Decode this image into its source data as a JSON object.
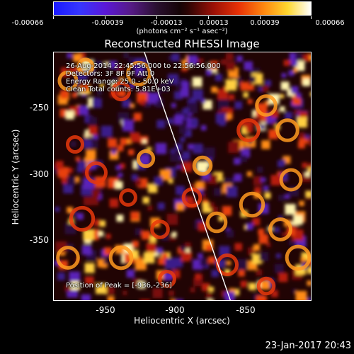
{
  "colorbar": {
    "tick_labels": [
      "-0.00066",
      "-0.00039",
      "-0.00013",
      "0.00013",
      "0.00039",
      "0.00066"
    ],
    "units": "(photons cm⁻² s⁻¹ asec⁻²)",
    "min": -0.00066,
    "max": 0.00066
  },
  "image": {
    "title": "Reconstructed RHESSI Image",
    "info_lines": [
      "26-Aug-2014 22:45:56.000 to 22:56:56.000",
      "Detectors: 3F 8F 9F Att 0",
      "Energy Range: 25.0 - 50.0 keV",
      "Clean     Total counts: 5.81E+03"
    ],
    "peak_text": "Position of Peak = [-936,-236]",
    "x_range": [
      -995,
      -810
    ],
    "y_range": [
      -398,
      -213
    ],
    "x_ticks": [
      "-950",
      "-900",
      "-850"
    ],
    "y_ticks": [
      "-250",
      "-300",
      "-350"
    ],
    "xlabel": "Heliocentric X (arcsec)",
    "ylabel": "Heliocentric Y (arcsec)",
    "limb_color": "#ffffff"
  },
  "footer": {
    "date": "23-Jan-2017 20:43"
  }
}
